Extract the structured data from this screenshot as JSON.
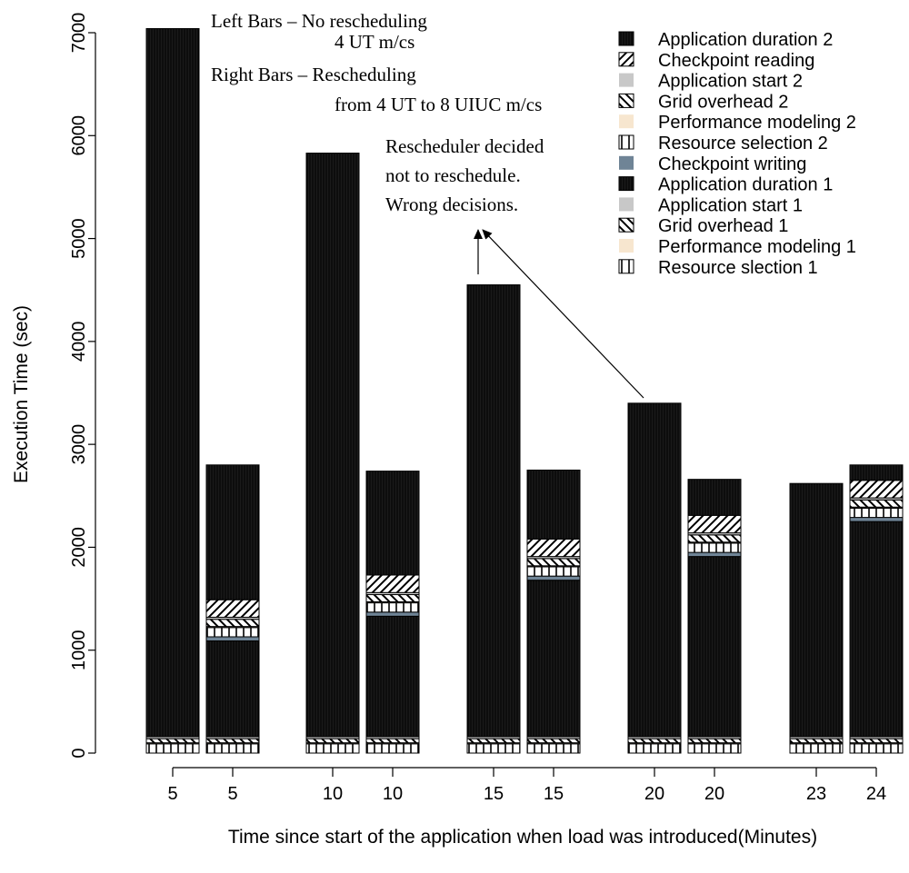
{
  "chart_data": {
    "type": "bar",
    "stacked": true,
    "xlabel": "Time since start of the application when load was introduced(Minutes)",
    "ylabel": "Execution Time (sec)",
    "ylim": [
      0,
      7000
    ],
    "yticks": [
      0,
      1000,
      2000,
      3000,
      4000,
      5000,
      6000,
      7000
    ],
    "categories": [
      "5",
      "5",
      "10",
      "10",
      "15",
      "15",
      "20",
      "20",
      "23",
      "24"
    ],
    "bar_roles": [
      "no-reschedule",
      "reschedule",
      "no-reschedule",
      "reschedule",
      "no-reschedule",
      "reschedule",
      "no-reschedule",
      "reschedule",
      "no-reschedule",
      "reschedule"
    ],
    "series": [
      {
        "name": "Resource slection 1",
        "pattern": "vlines-box",
        "values": [
          90,
          90,
          90,
          90,
          90,
          90,
          90,
          90,
          90,
          90
        ]
      },
      {
        "name": "Performance modeling 1",
        "pattern": "solid",
        "color": "#f7e6cf",
        "values": [
          10,
          10,
          10,
          10,
          10,
          10,
          10,
          10,
          10,
          10
        ]
      },
      {
        "name": "Grid overhead 1",
        "pattern": "diag-down",
        "values": [
          40,
          40,
          40,
          40,
          40,
          40,
          40,
          40,
          40,
          40
        ]
      },
      {
        "name": "Application start 1",
        "pattern": "solid",
        "color": "#c8c8c8",
        "values": [
          20,
          20,
          20,
          20,
          20,
          20,
          20,
          20,
          20,
          20
        ]
      },
      {
        "name": "Application duration 1",
        "pattern": "dense",
        "values": [
          6880,
          930,
          5670,
          1170,
          4390,
          1520,
          3240,
          1750,
          2460,
          2090
        ]
      },
      {
        "name": "Checkpoint writing",
        "pattern": "solid",
        "color": "#6f8496",
        "values": [
          0,
          40,
          0,
          40,
          0,
          40,
          0,
          40,
          0,
          40
        ]
      },
      {
        "name": "Resource selection 2",
        "pattern": "vlines-box",
        "values": [
          0,
          90,
          0,
          90,
          0,
          90,
          0,
          90,
          0,
          90
        ]
      },
      {
        "name": "Performance modeling 2",
        "pattern": "solid",
        "color": "#f7e6cf",
        "values": [
          0,
          10,
          0,
          10,
          0,
          10,
          0,
          10,
          0,
          10
        ]
      },
      {
        "name": "Grid overhead 2",
        "pattern": "diag-down",
        "values": [
          0,
          70,
          0,
          70,
          0,
          70,
          0,
          70,
          0,
          70
        ]
      },
      {
        "name": "Application start 2",
        "pattern": "solid",
        "color": "#c8c8c8",
        "values": [
          0,
          20,
          0,
          20,
          0,
          20,
          0,
          20,
          0,
          20
        ]
      },
      {
        "name": "Checkpoint reading",
        "pattern": "diag-up",
        "values": [
          0,
          170,
          0,
          170,
          0,
          170,
          0,
          170,
          0,
          170
        ]
      },
      {
        "name": "Application duration 2",
        "pattern": "dense",
        "values": [
          0,
          1310,
          0,
          1010,
          0,
          670,
          0,
          350,
          0,
          150
        ]
      }
    ],
    "legend_order": [
      "Application duration 2",
      "Checkpoint reading",
      "Application start 2",
      "Grid overhead 2",
      "Performance modeling 2",
      "Resource selection 2",
      "Checkpoint writing",
      "Application duration 1",
      "Application start 1",
      "Grid overhead 1",
      "Performance modeling 1",
      "Resource slection 1"
    ],
    "legend_position": "top-right",
    "annotations": {
      "left_bars_line1": "Left Bars – No rescheduling",
      "left_bars_line2": "4 UT m/cs",
      "right_bars_line1": "Right Bars – Rescheduling",
      "right_bars_line2": "from 4 UT to 8 UIUC m/cs",
      "note_line1": "Rescheduler decided",
      "note_line2": "not to reschedule.",
      "note_line3": "Wrong decisions."
    },
    "grid": false
  }
}
